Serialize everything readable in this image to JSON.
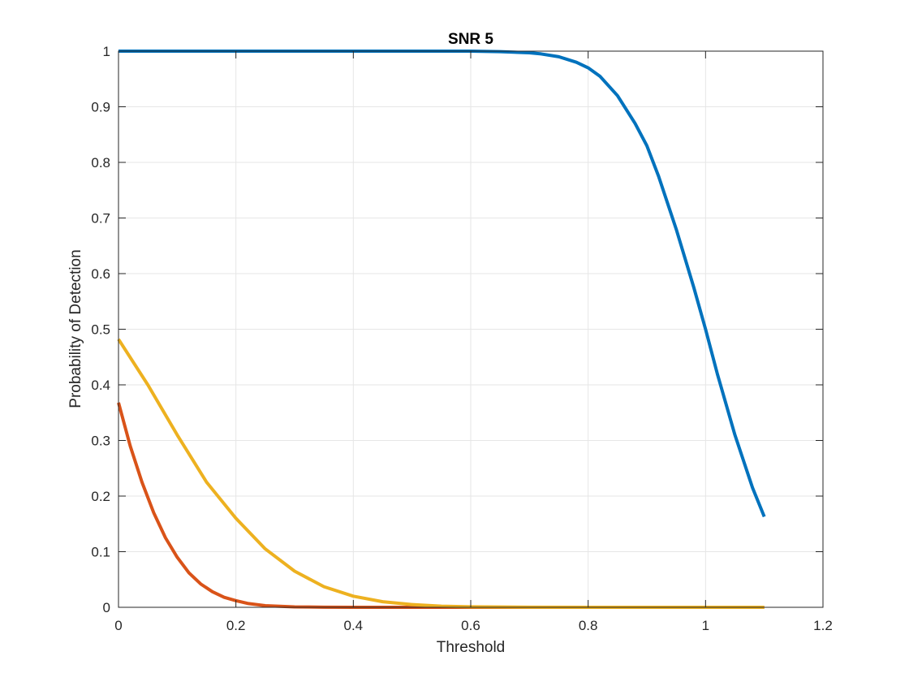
{
  "chart_data": {
    "type": "line",
    "title": "SNR 5",
    "xlabel": "Threshold",
    "ylabel": "Probability of Detection",
    "xlim": [
      0,
      1.2
    ],
    "ylim": [
      0,
      1
    ],
    "xticks": [
      0,
      0.2,
      0.4,
      0.6,
      0.8,
      1,
      1.2
    ],
    "xtick_labels": [
      "0",
      "0.2",
      "0.4",
      "0.6",
      "0.8",
      "1",
      "1.2"
    ],
    "yticks": [
      0,
      0.1,
      0.2,
      0.3,
      0.4,
      0.5,
      0.6,
      0.7,
      0.8,
      0.9,
      1
    ],
    "ytick_labels": [
      "0",
      "0.1",
      "0.2",
      "0.3",
      "0.4",
      "0.5",
      "0.6",
      "0.7",
      "0.8",
      "0.9",
      "1"
    ],
    "grid": true,
    "series": [
      {
        "color": "#0072BD",
        "x": [
          0,
          0.1,
          0.2,
          0.3,
          0.4,
          0.5,
          0.6,
          0.65,
          0.7,
          0.72,
          0.75,
          0.78,
          0.8,
          0.82,
          0.85,
          0.88,
          0.9,
          0.92,
          0.95,
          0.98,
          1.0,
          1.02,
          1.05,
          1.08,
          1.1
        ],
        "y": [
          1,
          1,
          1,
          1,
          1,
          1,
          1,
          0.999,
          0.997,
          0.995,
          0.99,
          0.98,
          0.97,
          0.955,
          0.92,
          0.87,
          0.83,
          0.775,
          0.68,
          0.575,
          0.5,
          0.42,
          0.31,
          0.215,
          0.163
        ]
      },
      {
        "color": "#D95319",
        "x": [
          0,
          0.02,
          0.04,
          0.06,
          0.08,
          0.1,
          0.12,
          0.14,
          0.16,
          0.18,
          0.2,
          0.22,
          0.25,
          0.3,
          0.35,
          0.4,
          0.5,
          0.6,
          0.8,
          1.0,
          1.1
        ],
        "y": [
          0.368,
          0.29,
          0.225,
          0.17,
          0.125,
          0.09,
          0.062,
          0.042,
          0.028,
          0.018,
          0.012,
          0.007,
          0.003,
          0.0008,
          0.0002,
          0,
          0,
          0,
          0,
          0,
          0
        ]
      },
      {
        "color": "#EDB120",
        "x": [
          0,
          0.05,
          0.1,
          0.15,
          0.2,
          0.25,
          0.3,
          0.35,
          0.4,
          0.45,
          0.5,
          0.55,
          0.6,
          0.7,
          0.8,
          1.0,
          1.1
        ],
        "y": [
          0.482,
          0.4,
          0.31,
          0.225,
          0.16,
          0.105,
          0.065,
          0.037,
          0.02,
          0.01,
          0.005,
          0.002,
          0.001,
          0.0002,
          0,
          0,
          0
        ]
      }
    ]
  }
}
